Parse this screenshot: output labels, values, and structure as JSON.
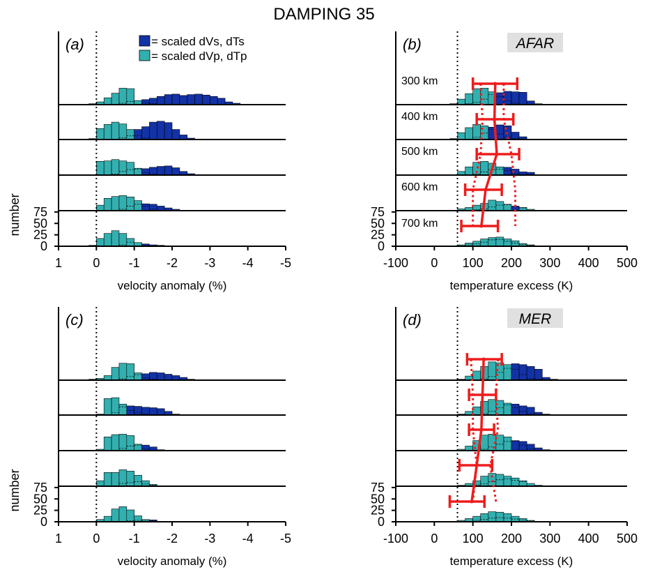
{
  "title": "DAMPING 35",
  "colors": {
    "dark_blue": "#1232a6",
    "teal": "#33afb0",
    "red": "#ee1c1c",
    "region_bg": "#e0e0e0"
  },
  "legend": {
    "s_label": "= scaled dVs, dTs",
    "p_label": "= scaled dVp, dTp"
  },
  "depth_labels": [
    "300 km",
    "400 km",
    "500 km",
    "600 km",
    "700 km"
  ],
  "chart_data": [
    {
      "panel": "(a)",
      "type": "bar",
      "subtype": "stacked histograms",
      "region": "",
      "xlabel": "velocity anomaly (%)",
      "ylabel": "number",
      "xlim": [
        1,
        -5
      ],
      "x_ticks": [
        "1",
        "0",
        "-1",
        "-2",
        "-3",
        "-4",
        "-5"
      ],
      "y_ticks": [
        "0",
        "25",
        "50",
        "75"
      ],
      "ref_line": 0,
      "bin_start": 0.2,
      "bin_width": -0.2,
      "rows": [
        {
          "p": [
            2,
            6,
            15,
            25,
            36,
            35,
            9,
            4,
            2,
            1,
            1
          ],
          "s": [
            0,
            0,
            0,
            1,
            3,
            7,
            9,
            11,
            14,
            18,
            22,
            23,
            20,
            22,
            23,
            21,
            18,
            14,
            6,
            3,
            1
          ]
        },
        {
          "p": [
            2,
            24,
            33,
            38,
            34,
            22,
            8,
            3
          ],
          "s": [
            0,
            0,
            0,
            1,
            4,
            8,
            22,
            28,
            38,
            40,
            37,
            22,
            10,
            3,
            1
          ]
        },
        {
          "p": [
            1,
            30,
            31,
            34,
            31,
            28,
            15,
            5,
            2
          ],
          "s": [
            0,
            0,
            1,
            2,
            8,
            12,
            13,
            14,
            17,
            19,
            20,
            16,
            8,
            3,
            1
          ]
        },
        {
          "p": [
            1,
            12,
            27,
            31,
            33,
            30,
            22,
            10,
            3
          ],
          "s": [
            0,
            0,
            0,
            1,
            3,
            10,
            14,
            15,
            14,
            10,
            6,
            3
          ]
        },
        {
          "p": [
            2,
            17,
            28,
            34,
            28,
            17,
            8,
            2
          ],
          "s": [
            0,
            0,
            0,
            1,
            3,
            9,
            8,
            5,
            3,
            2,
            1
          ]
        }
      ]
    },
    {
      "panel": "(b)",
      "type": "bar",
      "subtype": "stacked histograms with error bars",
      "region": "AFAR",
      "xlabel": "temperature excess (K)",
      "ylabel": "",
      "xlim": [
        -100,
        500
      ],
      "x_ticks": [
        "-100",
        "0",
        "100",
        "200",
        "300",
        "400",
        "500"
      ],
      "y_ticks": [
        "0",
        "25",
        "50",
        "75"
      ],
      "ref_line": 60,
      "bin_start": 40,
      "bin_width": 20,
      "rows": [
        {
          "p": [
            2,
            12,
            24,
            35,
            36,
            28,
            18,
            8,
            3,
            1
          ],
          "s": [
            0,
            0,
            2,
            5,
            12,
            22,
            26,
            29,
            28,
            27,
            8,
            2
          ]
        },
        {
          "p": [
            2,
            15,
            26,
            33,
            30,
            22,
            12,
            5,
            2
          ],
          "s": [
            0,
            0,
            1,
            5,
            14,
            27,
            32,
            30,
            16,
            6,
            1
          ]
        },
        {
          "p": [
            1,
            8,
            18,
            28,
            30,
            26,
            18,
            10,
            4,
            1
          ],
          "s": [
            0,
            0,
            1,
            2,
            7,
            12,
            13,
            17,
            13,
            7,
            6
          ]
        },
        {
          "p": [
            1,
            4,
            7,
            12,
            16,
            23,
            20,
            14,
            9,
            7,
            3
          ],
          "s": [
            0,
            0,
            1,
            2,
            4,
            8,
            12,
            13,
            10,
            6,
            3
          ]
        },
        {
          "p": [
            1,
            3,
            7,
            11,
            16,
            19,
            20,
            16,
            12,
            6,
            3
          ],
          "s": [
            0,
            1,
            3,
            5,
            9,
            14,
            15,
            11,
            7,
            4,
            2
          ]
        }
      ],
      "means": [
        158,
        156,
        162,
        133,
        122
      ],
      "err_low": [
        100,
        110,
        110,
        80,
        70
      ],
      "err_high": [
        215,
        205,
        220,
        175,
        165
      ],
      "dot_low": [
        120,
        125,
        120,
        100,
        100
      ],
      "dot_high": [
        180,
        180,
        200,
        210,
        210
      ]
    },
    {
      "panel": "(c)",
      "type": "bar",
      "subtype": "stacked histograms",
      "region": "",
      "xlabel": "velocity anomaly (%)",
      "ylabel": "number",
      "xlim": [
        1,
        -5
      ],
      "x_ticks": [
        "1",
        "0",
        "-1",
        "-2",
        "-3",
        "-4",
        "-5"
      ],
      "y_ticks": [
        "0",
        "25",
        "50",
        "75"
      ],
      "ref_line": 0,
      "bin_start": 0.2,
      "bin_width": -0.2,
      "rows": [
        {
          "p": [
            2,
            4,
            10,
            28,
            37,
            36,
            16,
            5,
            2
          ],
          "s": [
            0,
            0,
            0,
            1,
            3,
            8,
            12,
            14,
            17,
            16,
            13,
            10,
            6,
            2,
            1
          ]
        },
        {
          "p": [
            1,
            2,
            36,
            38,
            24,
            10,
            5,
            2
          ],
          "s": [
            0,
            0,
            0,
            5,
            18,
            20,
            19,
            17,
            16,
            14,
            8,
            2
          ]
        },
        {
          "p": [
            1,
            3,
            30,
            35,
            36,
            33,
            14,
            4,
            1
          ],
          "s": [
            0,
            0,
            0,
            1,
            5,
            10,
            12,
            12,
            8,
            2
          ]
        },
        {
          "p": [
            1,
            12,
            30,
            30,
            36,
            33,
            24,
            12,
            4,
            1
          ],
          "s": [
            0,
            0,
            0,
            1,
            6,
            8,
            10,
            5,
            2
          ]
        },
        {
          "p": [
            1,
            5,
            12,
            28,
            33,
            26,
            13,
            5,
            2
          ],
          "s": [
            0,
            0,
            0,
            0,
            1,
            2,
            3,
            2,
            4,
            1
          ]
        }
      ]
    },
    {
      "panel": "(d)",
      "type": "bar",
      "subtype": "stacked histograms with error bars",
      "region": "MER",
      "xlabel": "temperature excess (K)",
      "ylabel": "",
      "xlim": [
        -100,
        500
      ],
      "x_ticks": [
        "-100",
        "0",
        "100",
        "200",
        "300",
        "400",
        "500"
      ],
      "y_ticks": [
        "0",
        "25",
        "50",
        "75"
      ],
      "ref_line": 60,
      "bin_start": 40,
      "bin_width": 20,
      "rows": [
        {
          "p": [
            1,
            2,
            9,
            20,
            30,
            40,
            38,
            34,
            24,
            12,
            4,
            2,
            1
          ],
          "s": [
            0,
            0,
            0,
            1,
            3,
            8,
            17,
            26,
            36,
            34,
            30,
            24,
            6,
            2
          ]
        },
        {
          "p": [
            1,
            2,
            8,
            18,
            30,
            34,
            32,
            26,
            16,
            8,
            3,
            1
          ],
          "s": [
            0,
            0,
            0,
            1,
            3,
            8,
            16,
            22,
            24,
            20,
            17,
            6,
            2
          ]
        },
        {
          "p": [
            1,
            3,
            10,
            22,
            34,
            36,
            34,
            30,
            20,
            12,
            4,
            1
          ],
          "s": [
            0,
            0,
            0,
            1,
            3,
            8,
            14,
            20,
            22,
            20,
            14,
            6,
            2
          ]
        },
        {
          "p": [
            1,
            2,
            6,
            12,
            22,
            28,
            26,
            22,
            18,
            12,
            6,
            2
          ],
          "s": [
            0,
            0,
            1,
            3,
            5,
            10,
            14,
            16,
            13,
            10,
            6,
            2,
            1
          ]
        },
        {
          "p": [
            1,
            3,
            7,
            12,
            18,
            22,
            21,
            18,
            12,
            7,
            3,
            1
          ],
          "s": [
            0,
            0,
            1,
            3,
            5,
            8,
            9,
            8,
            6,
            4,
            2,
            1
          ]
        }
      ],
      "means": [
        128,
        125,
        122,
        110,
        97
      ],
      "err_low": [
        85,
        90,
        90,
        65,
        40
      ],
      "err_high": [
        175,
        160,
        155,
        150,
        130
      ],
      "dot_low": [
        95,
        100,
        100,
        110,
        100
      ],
      "dot_high": [
        165,
        160,
        165,
        145,
        160
      ]
    }
  ]
}
